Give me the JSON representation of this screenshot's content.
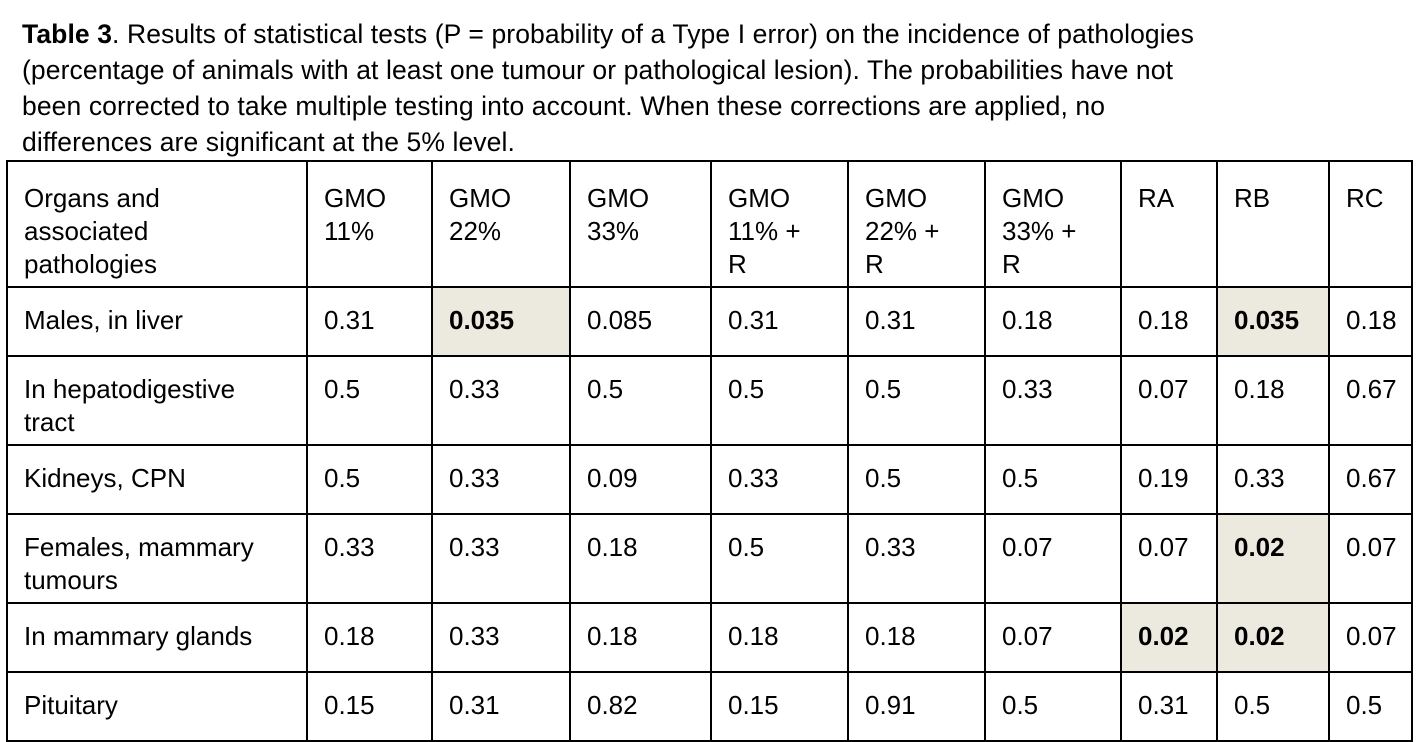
{
  "caption": {
    "label": "Table 3",
    "text_line1": ". Results of statistical tests (P = probability of a Type I error) on the incidence of pathologies",
    "text_line2": "(percentage of animals with at least one tumour or pathological lesion). The probabilities have not",
    "text_line3": "been corrected to take multiple testing into account. When these corrections are applied, no",
    "text_line4": "differences are significant at the 5% level."
  },
  "table": {
    "headers": [
      "Organs and\nassociated\npathologies",
      "GMO\n11%",
      "GMO\n22%",
      "GMO\n33%",
      "GMO\n11% +\nR",
      "GMO\n22% +\nR",
      "GMO\n33% +\nR",
      "RA",
      "RB",
      "RC"
    ],
    "rows": [
      {
        "label": "Males, in liver",
        "values": [
          "0.31",
          "0.035",
          "0.085",
          "0.31",
          "0.31",
          "0.18",
          "0.18",
          "0.035",
          "0.18"
        ],
        "highlight": [
          false,
          true,
          false,
          false,
          false,
          false,
          false,
          true,
          false
        ]
      },
      {
        "label": "In hepatodigestive\ntract",
        "values": [
          "0.5",
          "0.33",
          "0.5",
          "0.5",
          "0.5",
          "0.33",
          "0.07",
          "0.18",
          "0.67"
        ],
        "highlight": [
          false,
          false,
          false,
          false,
          false,
          false,
          false,
          false,
          false
        ]
      },
      {
        "label": "Kidneys, CPN",
        "values": [
          "0.5",
          "0.33",
          "0.09",
          "0.33",
          "0.5",
          "0.5",
          "0.19",
          "0.33",
          "0.67"
        ],
        "highlight": [
          false,
          false,
          false,
          false,
          false,
          false,
          false,
          false,
          false
        ]
      },
      {
        "label": "Females, mammary\ntumours",
        "values": [
          "0.33",
          "0.33",
          "0.18",
          "0.5",
          "0.33",
          "0.07",
          "0.07",
          "0.02",
          "0.07"
        ],
        "highlight": [
          false,
          false,
          false,
          false,
          false,
          false,
          false,
          true,
          false
        ]
      },
      {
        "label": "In mammary glands",
        "values": [
          "0.18",
          "0.33",
          "0.18",
          "0.18",
          "0.18",
          "0.07",
          "0.02",
          "0.02",
          "0.07"
        ],
        "highlight": [
          false,
          false,
          false,
          false,
          false,
          false,
          true,
          true,
          false
        ]
      },
      {
        "label": "Pituitary",
        "values": [
          "0.15",
          "0.31",
          "0.82",
          "0.15",
          "0.91",
          "0.5",
          "0.31",
          "0.5",
          "0.5"
        ],
        "highlight": [
          false,
          false,
          false,
          false,
          false,
          false,
          false,
          false,
          false
        ]
      }
    ]
  },
  "colors": {
    "highlight_bg": "#ece9df"
  }
}
